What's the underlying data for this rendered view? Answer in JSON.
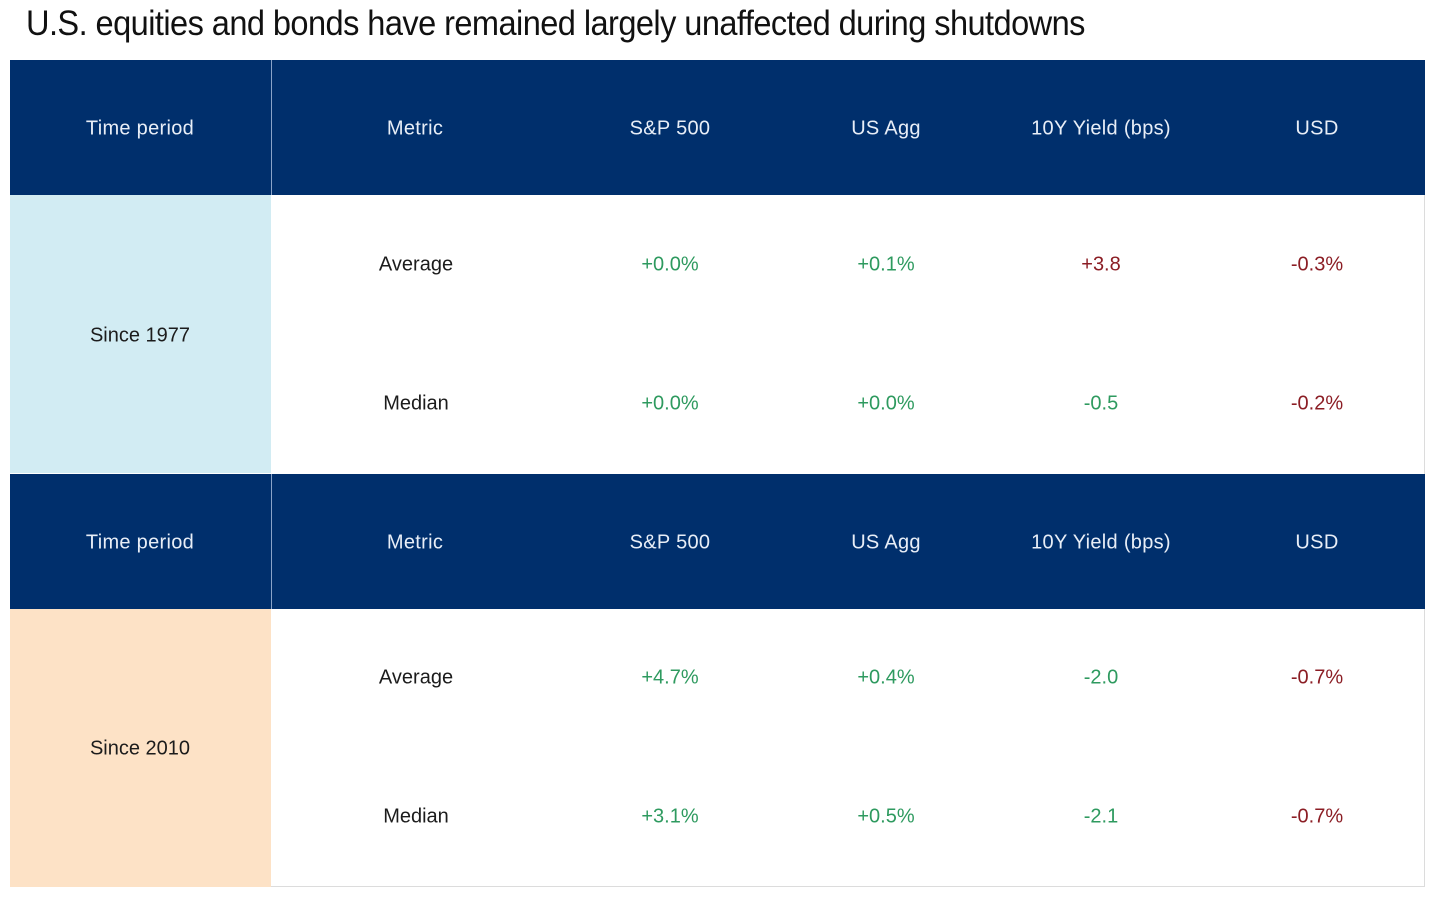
{
  "title": "U.S. equities and bonds have remained largely unaffected during shutdowns",
  "columns": [
    "Time period",
    "Metric",
    "S&P 500",
    "US Agg",
    "10Y Yield (bps)",
    "USD"
  ],
  "colors": {
    "header_bg": "#002f6c",
    "since_1977_bg": "#d2ecf3",
    "since_2010_bg": "#fde2c6",
    "positive_text": "#2e9a5f",
    "negative_text": "#8b1d24"
  },
  "sections": [
    {
      "period": "Since 1977",
      "rows": [
        {
          "metric": "Average",
          "sp500": "+0.0%",
          "us_agg": "+0.1%",
          "yield_10y": "+3.8",
          "usd": "-0.3%",
          "tone": {
            "sp500": "pos",
            "us_agg": "pos",
            "yield_10y": "neg",
            "usd": "neg"
          }
        },
        {
          "metric": "Median",
          "sp500": "+0.0%",
          "us_agg": "+0.0%",
          "yield_10y": "-0.5",
          "usd": "-0.2%",
          "tone": {
            "sp500": "pos",
            "us_agg": "pos",
            "yield_10y": "pos",
            "usd": "neg"
          }
        }
      ]
    },
    {
      "period": "Since 2010",
      "rows": [
        {
          "metric": "Average",
          "sp500": "+4.7%",
          "us_agg": "+0.4%",
          "yield_10y": "-2.0",
          "usd": "-0.7%",
          "tone": {
            "sp500": "pos",
            "us_agg": "pos",
            "yield_10y": "pos",
            "usd": "neg"
          }
        },
        {
          "metric": "Median",
          "sp500": "+3.1%",
          "us_agg": "+0.5%",
          "yield_10y": "-2.1",
          "usd": "-0.7%",
          "tone": {
            "sp500": "pos",
            "us_agg": "pos",
            "yield_10y": "pos",
            "usd": "neg"
          }
        }
      ]
    }
  ]
}
